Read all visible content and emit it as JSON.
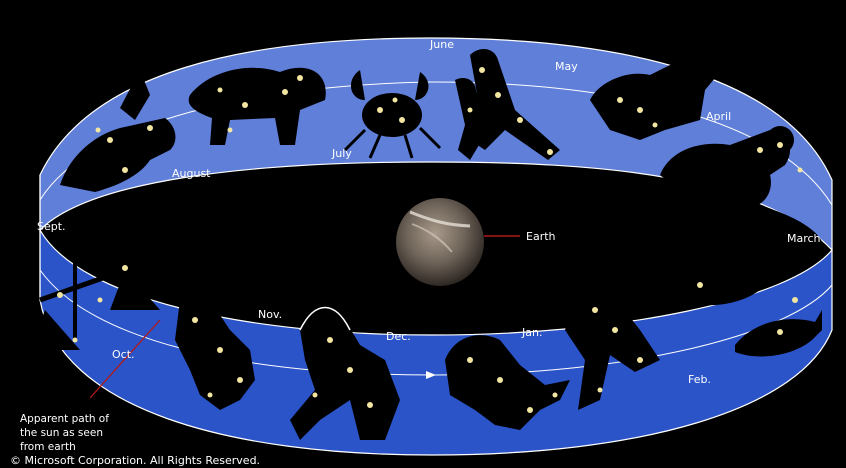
{
  "labels": {
    "june": "June",
    "may": "May",
    "april": "April",
    "march": "March",
    "feb": "Feb.",
    "jan": "Jan.",
    "dec": "Dec.",
    "nov": "Nov.",
    "oct": "Oct.",
    "sept": "Sept.",
    "august": "August",
    "july": "July",
    "earth": "Earth"
  },
  "caption": [
    "Apparent path of",
    "the sun as seen",
    "from earth"
  ],
  "copyright": "© Microsoft Corporation. All Rights Reserved.",
  "colors": {
    "band_outer": "#2b54c8",
    "band_inner": "#5f7fd8",
    "earth": "#6f6459",
    "star": "#f2e6a0",
    "pointer": "#b01a1a"
  }
}
